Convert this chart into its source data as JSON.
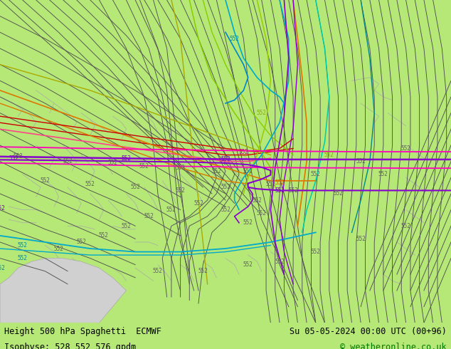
{
  "title_left": "Height 500 hPa Spaghetti  ECMWF",
  "title_right": "Su 05-05-2024 00:00 UTC (00+96)",
  "subtitle_left": "Isophyse: 528 552 576 gpdm",
  "subtitle_right": "© weatheronline.co.uk",
  "bg": "#b5e876",
  "footer_bg": "#ffffff",
  "footer_fontsize": 8.5,
  "label_fontsize": 6.5,
  "fig_width": 6.34,
  "fig_height": 4.9,
  "dpi": 100,
  "gray": "#686868",
  "darkgray": "#505050",
  "magenta": "#ff00bb",
  "red": "#cc0000",
  "purple": "#8800cc",
  "orange": "#dd7700",
  "yellow": "#aaaa00",
  "lime": "#88cc00",
  "cyan": "#00aacc",
  "cyan2": "#00ccaa",
  "blue": "#0088cc",
  "teal": "#008888",
  "pink": "#ff4488"
}
